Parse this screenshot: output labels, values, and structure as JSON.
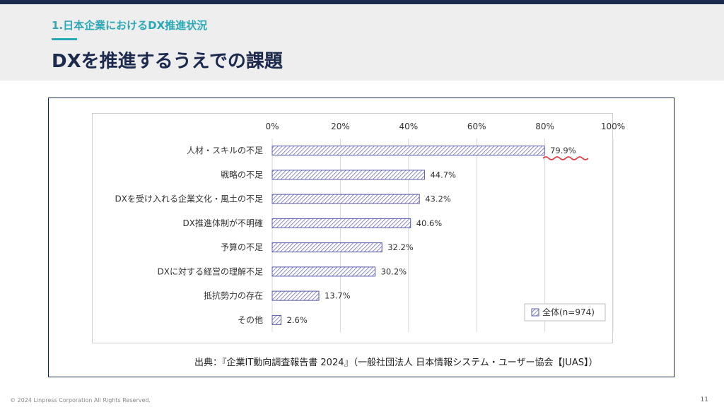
{
  "header": {
    "section": "1.日本企業におけるDX推進状況",
    "title": "DXを推進するうえでの課題"
  },
  "chart_data": {
    "type": "bar",
    "orientation": "horizontal",
    "categories": [
      "人材・スキルの不足",
      "戦略の不足",
      "DXを受け入れる企業文化・風土の不足",
      "DX推進体制が不明確",
      "予算の不足",
      "DXに対する経営の理解不足",
      "抵抗勢力の存在",
      "その他"
    ],
    "series": [
      {
        "name": "全体(n=974)",
        "values": [
          79.9,
          44.7,
          43.2,
          40.6,
          32.2,
          30.2,
          13.7,
          2.6
        ]
      }
    ],
    "value_labels": [
      "79.9%",
      "44.7%",
      "43.2%",
      "40.6%",
      "32.2%",
      "30.2%",
      "13.7%",
      "2.6%"
    ],
    "xlim": [
      0,
      100
    ],
    "x_ticks": [
      "0%",
      "20%",
      "40%",
      "60%",
      "80%",
      "100%"
    ],
    "grid": true,
    "legend_position": "bottom-right",
    "bar_pattern": "diagonal-hatch",
    "colors": {
      "bar_stroke": "#5a5aa8",
      "hatch": "#6b6bc0",
      "highlight_underline": "#d94040"
    }
  },
  "source": "出典：『企業IT動向調査報告書 2024』（一般社団法人 日本情報システム・ユーザー協会【JUAS】）",
  "footer": {
    "copyright": "© 2024 Linpress Corporation All Rights Reserved.",
    "page": "11"
  }
}
